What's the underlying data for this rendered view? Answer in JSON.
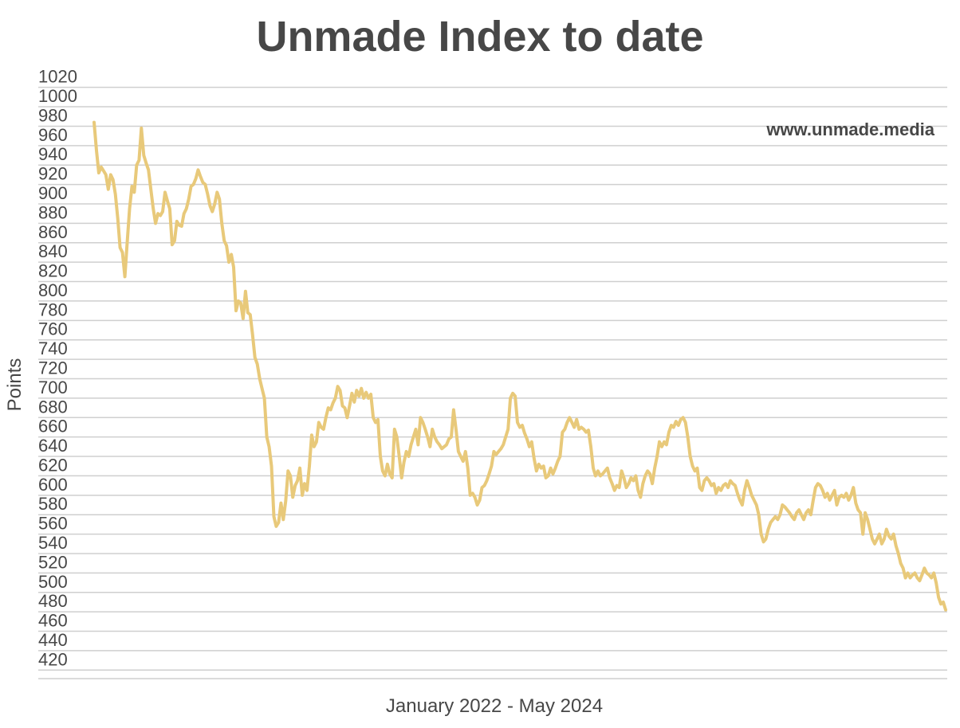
{
  "chart_data": {
    "type": "line",
    "title": "Unmade Index to date",
    "xlabel": "January 2022 - May 2024",
    "ylabel": "Points",
    "watermark": "www.unmade.media",
    "ylim": [
      410,
      1020
    ],
    "yticks": [
      1020,
      1000,
      980,
      960,
      940,
      920,
      900,
      880,
      860,
      840,
      820,
      800,
      780,
      760,
      740,
      720,
      700,
      680,
      660,
      640,
      620,
      600,
      580,
      560,
      540,
      520,
      500,
      480,
      460,
      440,
      420
    ],
    "grid": true,
    "legend": "none",
    "colors": {
      "line": "#E8C97A",
      "grid": "#CFCFCF",
      "text": "#474747"
    },
    "series": [
      {
        "values": [
          984,
          955,
          932,
          938,
          934,
          930,
          915,
          930,
          925,
          910,
          885,
          855,
          850,
          825,
          860,
          895,
          918,
          912,
          940,
          945,
          978,
          950,
          942,
          935,
          915,
          895,
          880,
          890,
          888,
          892,
          912,
          903,
          895,
          858,
          862,
          882,
          878,
          877,
          890,
          895,
          905,
          918,
          920,
          926,
          935,
          928,
          922,
          920,
          910,
          898,
          892,
          900,
          912,
          905,
          880,
          862,
          857,
          840,
          848,
          835,
          790,
          800,
          798,
          782,
          810,
          788,
          786,
          765,
          742,
          735,
          720,
          710,
          700,
          660,
          650,
          630,
          578,
          568,
          572,
          592,
          575,
          594,
          625,
          620,
          598,
          610,
          615,
          628,
          600,
          612,
          605,
          630,
          662,
          650,
          655,
          675,
          670,
          668,
          680,
          690,
          688,
          695,
          700,
          712,
          708,
          692,
          690,
          680,
          692,
          705,
          696,
          708,
          702,
          710,
          700,
          706,
          700,
          704,
          680,
          675,
          678,
          640,
          625,
          620,
          632,
          622,
          618,
          668,
          660,
          640,
          618,
          634,
          645,
          640,
          652,
          660,
          668,
          652,
          680,
          675,
          668,
          660,
          650,
          668,
          660,
          655,
          652,
          648,
          650,
          652,
          658,
          660,
          688,
          668,
          645,
          640,
          635,
          645,
          628,
          600,
          602,
          598,
          590,
          595,
          608,
          610,
          615,
          622,
          630,
          645,
          642,
          645,
          648,
          652,
          660,
          668,
          700,
          705,
          702,
          675,
          670,
          672,
          664,
          658,
          650,
          655,
          638,
          625,
          632,
          628,
          630,
          618,
          620,
          628,
          622,
          628,
          635,
          640,
          665,
          668,
          675,
          680,
          675,
          670,
          678,
          668,
          670,
          668,
          665,
          667,
          650,
          628,
          620,
          625,
          620,
          622,
          625,
          628,
          618,
          612,
          605,
          610,
          608,
          625,
          618,
          608,
          612,
          618,
          615,
          620,
          605,
          598,
          612,
          620,
          625,
          622,
          612,
          628,
          640,
          655,
          650,
          655,
          652,
          665,
          672,
          670,
          676,
          672,
          678,
          680,
          675,
          660,
          640,
          630,
          625,
          628,
          608,
          605,
          615,
          618,
          615,
          610,
          612,
          602,
          608,
          605,
          610,
          612,
          608,
          615,
          612,
          610,
          602,
          595,
          590,
          605,
          615,
          608,
          600,
          595,
          590,
          580,
          560,
          552,
          555,
          565,
          572,
          575,
          578,
          575,
          580,
          590,
          588,
          585,
          582,
          578,
          575,
          582,
          585,
          580,
          575,
          582,
          585,
          580,
          595,
          608,
          612,
          610,
          605,
          598,
          602,
          595,
          600,
          605,
          590,
          598,
          600,
          598,
          602,
          595,
          600,
          608,
          592,
          585,
          582,
          560,
          582,
          575,
          565,
          555,
          550,
          555,
          560,
          550,
          555,
          565,
          558,
          555,
          560,
          548,
          540,
          530,
          525,
          515,
          520,
          515,
          518,
          520,
          515,
          512,
          518,
          525,
          520,
          518,
          515,
          520,
          510,
          495,
          488,
          490,
          482
        ]
      }
    ]
  }
}
